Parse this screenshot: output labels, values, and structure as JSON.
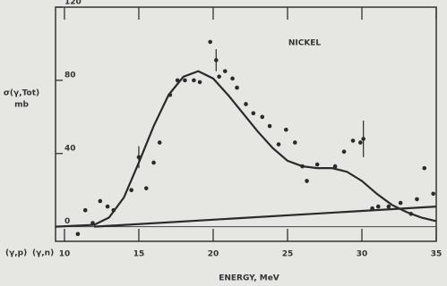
{
  "chart_data": {
    "type": "scatter",
    "y_label": "σ(γ,Tot)",
    "y_unit": "mb",
    "x_label": "ENERGY, MeV",
    "annotations": [
      "NICKEL",
      "(γ,p)",
      "(γ,n)"
    ],
    "xlim": [
      9.4,
      35
    ],
    "ylim": [
      -8,
      120
    ],
    "xticks": [
      10,
      15,
      20,
      25,
      30,
      35
    ],
    "yticks": [
      0,
      40,
      80,
      120
    ],
    "series": [
      {
        "kind": "points",
        "color": "#2a2a2a",
        "x": [
          10.9,
          11.4,
          11.9,
          12.4,
          12.9,
          13.3,
          14.5,
          15.0,
          15.5,
          16.0,
          16.4,
          17.1,
          17.6,
          18.1,
          18.7,
          19.1,
          19.8,
          20.2,
          20.4,
          20.8,
          21.3,
          21.6,
          22.2,
          22.7,
          23.3,
          23.8,
          24.4,
          24.9,
          25.5,
          26.0,
          26.3,
          27.0,
          28.2,
          28.8,
          29.4,
          29.9,
          30.1,
          30.7,
          31.1,
          31.8,
          32.6,
          33.3,
          33.7,
          34.2,
          34.8
        ],
        "values": [
          -4,
          9,
          2,
          14,
          11,
          9,
          20,
          38,
          21,
          35,
          46,
          72,
          80,
          80,
          80,
          79,
          101,
          91,
          82,
          85,
          81,
          76,
          67,
          62,
          60,
          55,
          45,
          53,
          46,
          33,
          25,
          34,
          33,
          41,
          47,
          46,
          48,
          10,
          11,
          11,
          13,
          7,
          15,
          32,
          18
        ]
      },
      {
        "kind": "curve",
        "color": "#2a2a2a",
        "x": [
          9.4,
          12,
          13,
          14,
          15,
          16,
          17,
          18,
          19,
          20,
          21,
          22,
          23,
          24,
          25,
          26,
          27,
          28,
          29,
          30,
          31,
          32,
          33,
          34,
          35
        ],
        "values": [
          0,
          1,
          5,
          16,
          35,
          55,
          72,
          82,
          85,
          81,
          72,
          62,
          52,
          43,
          36,
          33,
          32,
          32,
          30,
          25,
          18,
          12,
          8,
          5,
          3
        ]
      },
      {
        "kind": "curve",
        "color": "#2a2a2a",
        "x": [
          12,
          35
        ],
        "values": [
          0,
          11
        ]
      }
    ],
    "error_bars": [
      {
        "x": 15.0,
        "y": 38,
        "error": 6
      },
      {
        "x": 20.2,
        "y": 91,
        "error": 6
      },
      {
        "x": 30.1,
        "y": 48,
        "error": 10
      }
    ]
  }
}
